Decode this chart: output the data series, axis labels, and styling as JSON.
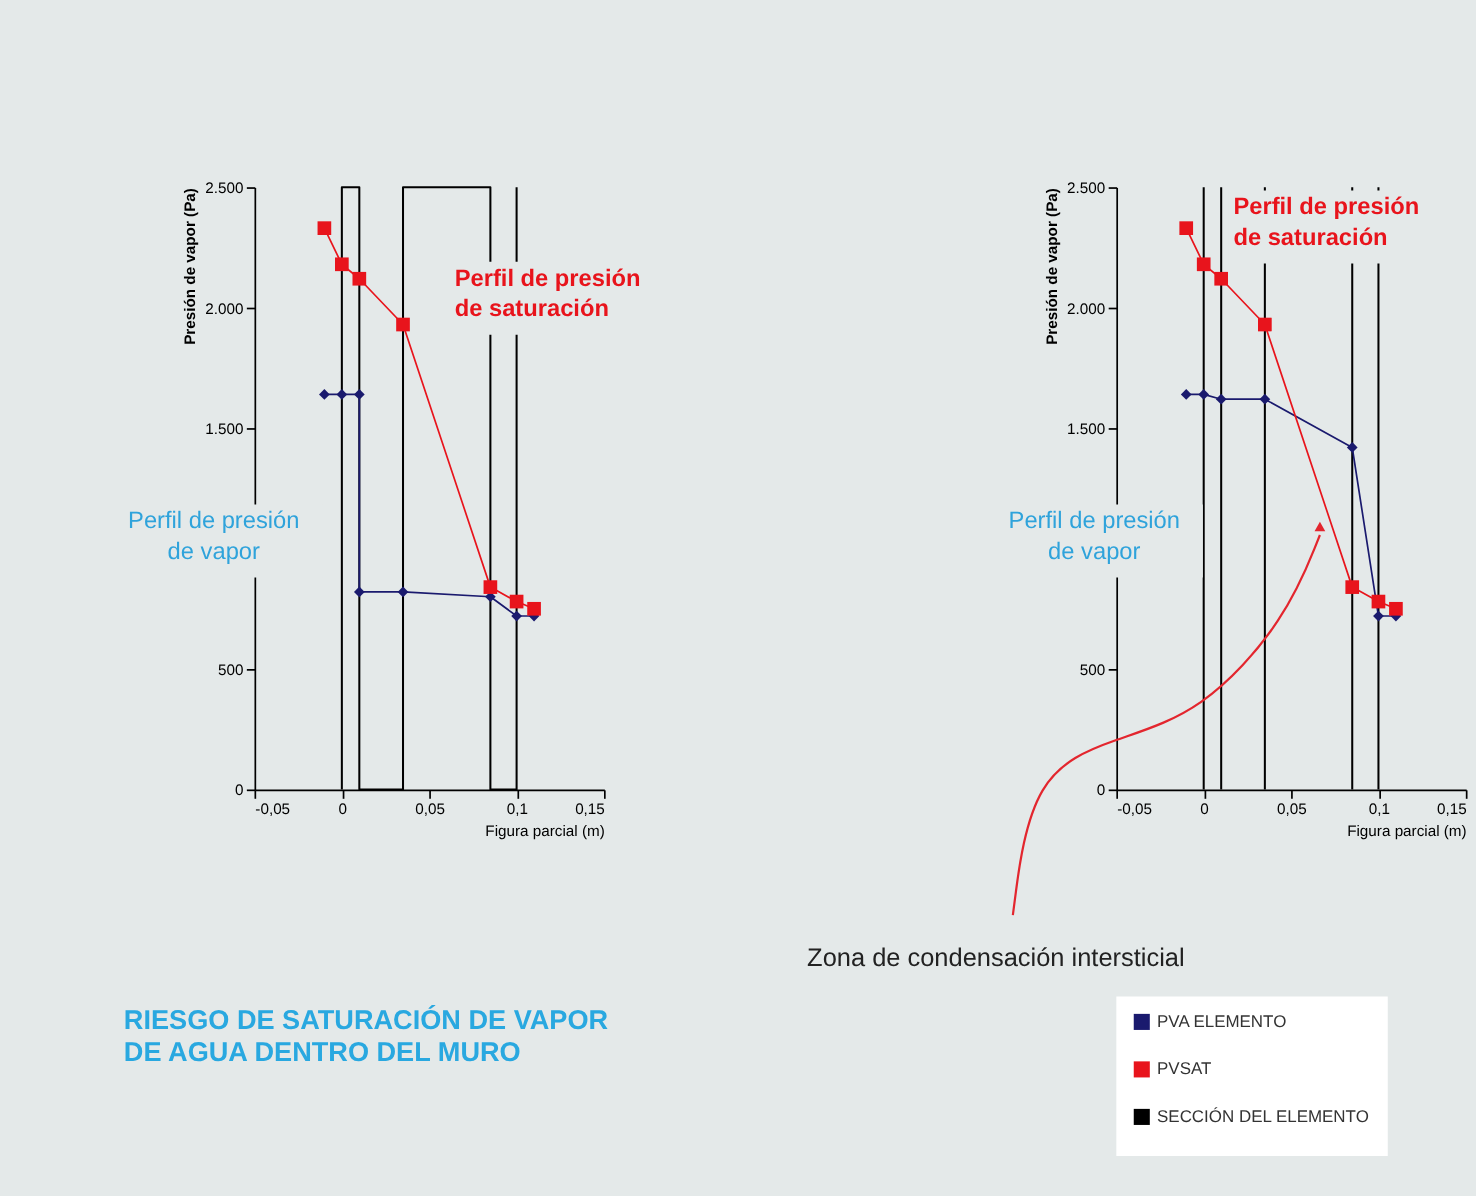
{
  "chart_data": [
    {
      "type": "line",
      "title": "RIESGO DE SATURACIÓN DE VAPOR DE AGUA DENTRO DEL MURO",
      "xlabel": "Figura parcial (m)",
      "ylabel": "Presión de vapor (Pa)",
      "xlim": [
        -0.05,
        0.15
      ],
      "ylim": [
        0,
        2500
      ],
      "xticks": [
        {
          "value": -0.05,
          "label": "-0,05"
        },
        0,
        {
          "value": 0.05,
          "label": "0,05"
        },
        {
          "value": 0.1,
          "label": "0,1"
        },
        {
          "value": 0.15,
          "label": "0,15"
        }
      ],
      "yticks": [
        0,
        500,
        {
          "value": 1500,
          "label": "1.500"
        },
        {
          "value": 2000,
          "label": "2.000"
        },
        {
          "value": 2500,
          "label": "2.500"
        }
      ],
      "legend": "bottom right",
      "grid": false,
      "line_style": "solid",
      "annotations": [
        "Perfil de presión de saturación",
        "Perfil de presión de vapor"
      ],
      "series": [
        {
          "name": "PVA ELEMENTO",
          "color": "#1a1a6e",
          "marker": "diamond",
          "x": [
            -0.01,
            0,
            0.01,
            0.01,
            0.035,
            0.085,
            0.1,
            0.11
          ],
          "values": [
            1640,
            1640,
            1640,
            820,
            820,
            800,
            720,
            720
          ]
        },
        {
          "name": "PVSAT",
          "color": "#e8141c",
          "marker": "square",
          "x": [
            -0.01,
            0,
            0.01,
            0.035,
            0.085,
            0.1,
            0.11
          ],
          "values": [
            2330,
            2180,
            2120,
            1930,
            840,
            780,
            750
          ]
        },
        {
          "name": "SECCIÓN DEL ELEMENTO",
          "color": "#000000",
          "marker": "none",
          "x": [
            0,
            0,
            0.01,
            0.01,
            0.035,
            0.035,
            0.085,
            0.085,
            0.1,
            0.1
          ],
          "values": [
            0,
            2500,
            2500,
            0,
            0,
            2500,
            2500,
            0,
            0,
            2500
          ]
        }
      ]
    },
    {
      "type": "line",
      "xlabel": "Figura parcial (m)",
      "ylabel": "Presión de vapor (Pa)",
      "xlim": [
        -0.05,
        0.15
      ],
      "ylim": [
        0,
        2500
      ],
      "xticks": [
        {
          "value": -0.05,
          "label": "-0,05"
        },
        0,
        {
          "value": 0.05,
          "label": "0,05"
        },
        {
          "value": 0.1,
          "label": "0,1"
        },
        {
          "value": 0.15,
          "label": "0,15"
        }
      ],
      "yticks": [
        0,
        500,
        {
          "value": 1500,
          "label": "1.500"
        },
        {
          "value": 2000,
          "label": "2.000"
        },
        {
          "value": 2500,
          "label": "2.500"
        }
      ],
      "grid": false,
      "line_style": "solid",
      "annotations": [
        "Perfil de presión de saturación",
        "Perfil de presión de vapor",
        "Zona de condensación intersticial"
      ],
      "ref_lines": [
        {
          "axis": "x",
          "value": 0,
          "color": "#000000"
        },
        {
          "axis": "x",
          "value": 0.01,
          "color": "#000000"
        },
        {
          "axis": "x",
          "value": 0.035,
          "color": "#000000"
        },
        {
          "axis": "x",
          "value": 0.085,
          "color": "#000000"
        },
        {
          "axis": "x",
          "value": 0.1,
          "color": "#000000"
        }
      ],
      "series": [
        {
          "color": "#1a1a6e",
          "marker": "diamond",
          "x": [
            -0.01,
            0,
            0.01,
            0.035,
            0.085,
            0.1,
            0.11
          ],
          "values": [
            1640,
            1640,
            1620,
            1620,
            1420,
            720,
            720
          ]
        },
        {
          "color": "#e8141c",
          "marker": "square",
          "x": [
            -0.01,
            0,
            0.01,
            0.035,
            0.085,
            0.1,
            0.11
          ],
          "values": [
            2330,
            2180,
            2120,
            1930,
            840,
            780,
            750
          ]
        }
      ]
    }
  ]
}
